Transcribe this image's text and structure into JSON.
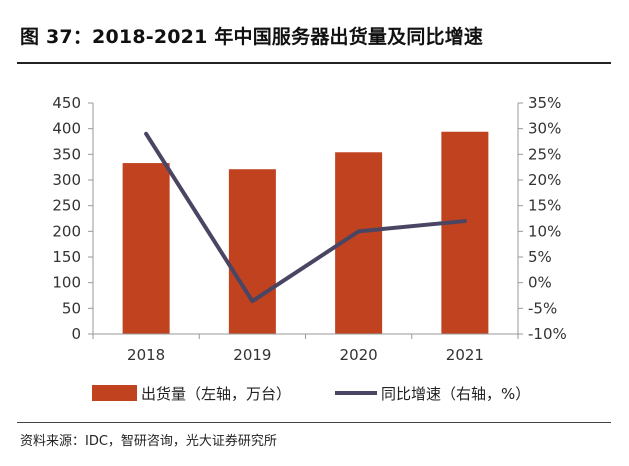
{
  "header": {
    "title": "图 37：2018-2021 年中国服务器出货量及同比增速"
  },
  "footer": {
    "source": "资料来源：IDC，智研咨询，光大证券研究所"
  },
  "colors": {
    "bar": "#c0421f",
    "line": "#4a4563",
    "axis": "#999999"
  },
  "chart_data": {
    "type": "bar",
    "categories": [
      "2018",
      "2019",
      "2020",
      "2021"
    ],
    "series": [
      {
        "name": "出货量（左轴，万台）",
        "type": "bar",
        "axis": "left",
        "values": [
          333,
          321,
          354,
          394
        ]
      },
      {
        "name": "同比增速（右轴，%）",
        "type": "line",
        "axis": "right",
        "values": [
          29,
          -3.6,
          10,
          12
        ]
      }
    ],
    "y_left": {
      "min": 0,
      "max": 450,
      "ticks": [
        "0",
        "50",
        "100",
        "150",
        "200",
        "250",
        "300",
        "350",
        "400",
        "450"
      ]
    },
    "y_right": {
      "min": -10,
      "max": 35,
      "ticks": [
        "-10%",
        "-5%",
        "0%",
        "5%",
        "10%",
        "15%",
        "20%",
        "25%",
        "30%",
        "35%"
      ]
    },
    "legend_position": "bottom",
    "grid": false
  }
}
